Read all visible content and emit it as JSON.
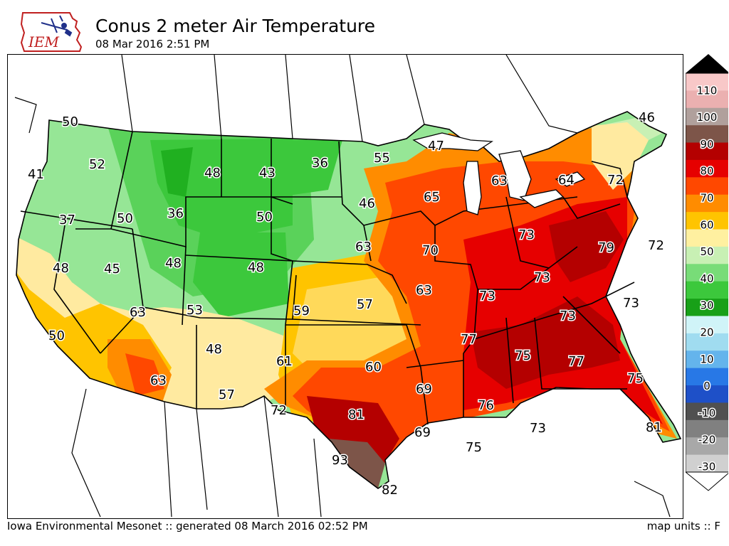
{
  "header": {
    "logo_text": "IEM",
    "title": "Conus 2 meter Air Temperature",
    "subtitle": "08 Mar 2016 2:51 PM"
  },
  "footer": {
    "left": "Iowa Environmental Mesonet :: generated 08 March 2016 02:52 PM",
    "right": "map units :: F"
  },
  "legend": {
    "ticks": [
      "110",
      "100",
      "90",
      "80",
      "70",
      "60",
      "50",
      "40",
      "30",
      "20",
      "10",
      "0",
      "-10",
      "-20",
      "-30"
    ],
    "colors": [
      "#f8c8c8",
      "#ebb0b0",
      "#b0a09c",
      "#7d5549",
      "#b40000",
      "#e60000",
      "#ff4800",
      "#ff8c00",
      "#ffc400",
      "#fff0a0",
      "#c8f0b4",
      "#78dc78",
      "#3cc83c",
      "#18a018",
      "#d0f4f8",
      "#a0dcf0",
      "#64b4ec",
      "#2878e6",
      "#1e50c8",
      "#505050",
      "#808080",
      "#a8a8a8",
      "#d0d0d0"
    ]
  },
  "temperatures": [
    {
      "value": "50"
    },
    {
      "value": "52"
    },
    {
      "value": "41"
    },
    {
      "value": "48"
    },
    {
      "value": "43"
    },
    {
      "value": "36"
    },
    {
      "value": "55"
    },
    {
      "value": "47"
    },
    {
      "value": "46"
    },
    {
      "value": "37"
    },
    {
      "value": "50"
    },
    {
      "value": "36"
    },
    {
      "value": "50"
    },
    {
      "value": "46"
    },
    {
      "value": "65"
    },
    {
      "value": "63"
    },
    {
      "value": "64"
    },
    {
      "value": "72"
    },
    {
      "value": "48"
    },
    {
      "value": "45"
    },
    {
      "value": "48"
    },
    {
      "value": "48"
    },
    {
      "value": "63"
    },
    {
      "value": "70"
    },
    {
      "value": "73"
    },
    {
      "value": "79"
    },
    {
      "value": "72"
    },
    {
      "value": "73"
    },
    {
      "value": "63"
    },
    {
      "value": "63"
    },
    {
      "value": "53"
    },
    {
      "value": "59"
    },
    {
      "value": "57"
    },
    {
      "value": "73"
    },
    {
      "value": "73"
    },
    {
      "value": "73"
    },
    {
      "value": "50"
    },
    {
      "value": "48"
    },
    {
      "value": "61"
    },
    {
      "value": "60"
    },
    {
      "value": "77"
    },
    {
      "value": "75"
    },
    {
      "value": "77"
    },
    {
      "value": "75"
    },
    {
      "value": "63"
    },
    {
      "value": "57"
    },
    {
      "value": "69"
    },
    {
      "value": "72"
    },
    {
      "value": "81"
    },
    {
      "value": "76"
    },
    {
      "value": "73"
    },
    {
      "value": "69"
    },
    {
      "value": "75"
    },
    {
      "value": "81"
    },
    {
      "value": "93"
    },
    {
      "value": "82"
    }
  ]
}
